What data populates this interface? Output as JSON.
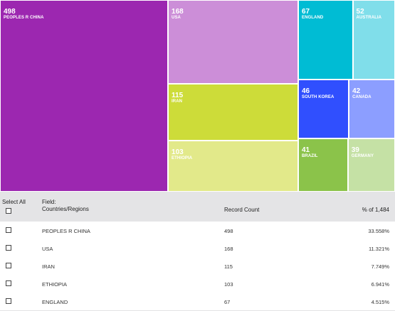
{
  "chart_data": {
    "type": "treemap",
    "items": [
      {
        "label": "PEOPLES R CHINA",
        "value": 498,
        "color": "#9c27b0"
      },
      {
        "label": "USA",
        "value": 168,
        "color": "#cc8ed8"
      },
      {
        "label": "IRAN",
        "value": 115,
        "color": "#cddc39"
      },
      {
        "label": "ETHIOPIA",
        "value": 103,
        "color": "#e2e98a"
      },
      {
        "label": "ENGLAND",
        "value": 67,
        "color": "#00bcd4"
      },
      {
        "label": "AUSTRALIA",
        "value": 52,
        "color": "#80deea"
      },
      {
        "label": "SOUTH KOREA",
        "value": 46,
        "color": "#304ffe"
      },
      {
        "label": "CANADA",
        "value": 42,
        "color": "#8c9eff"
      },
      {
        "label": "BRAZIL",
        "value": 41,
        "color": "#8bc34a"
      },
      {
        "label": "GERMANY",
        "value": 39,
        "color": "#c5e1a5"
      }
    ]
  },
  "table": {
    "select_all": "Select All",
    "field_label": "Field:",
    "field_name": "Countries/Regions",
    "record_count": "Record Count",
    "percent_header": "% of 1,484",
    "rows": [
      {
        "name": "PEOPLES R CHINA",
        "count": "498",
        "pct": "33.558%"
      },
      {
        "name": "USA",
        "count": "168",
        "pct": "11.321%"
      },
      {
        "name": "IRAN",
        "count": "115",
        "pct": "7.749%"
      },
      {
        "name": "ETHIOPIA",
        "count": "103",
        "pct": "6.941%"
      },
      {
        "name": "ENGLAND",
        "count": "67",
        "pct": "4.515%"
      }
    ]
  }
}
